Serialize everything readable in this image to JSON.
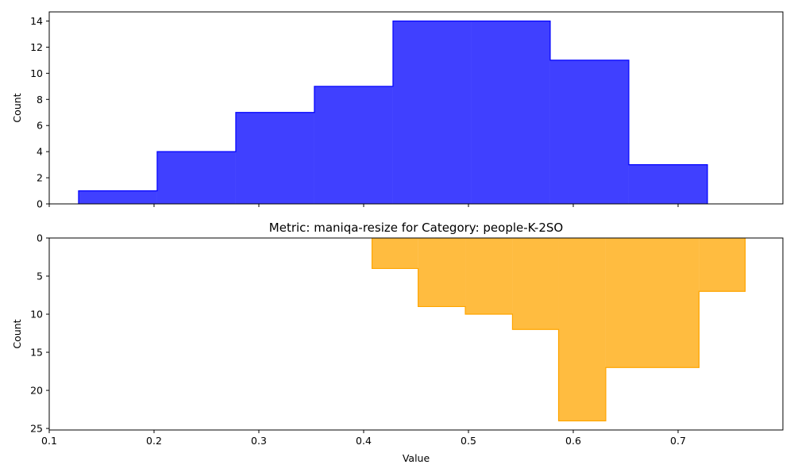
{
  "chart_data": [
    {
      "type": "histogram",
      "title": "",
      "xlabel": "",
      "ylabel": "Count",
      "xlim": [
        0.1,
        0.8
      ],
      "ylim": [
        0,
        14.7
      ],
      "y_inverted": false,
      "yticks": [
        0,
        2,
        4,
        6,
        8,
        10,
        12,
        14
      ],
      "xticks": [
        0.1,
        0.2,
        0.3,
        0.4,
        0.5,
        0.6,
        0.7
      ],
      "show_xtick_labels": false,
      "color": "#0000ff",
      "edges": [
        0.128,
        0.203,
        0.278,
        0.353,
        0.428,
        0.503,
        0.578,
        0.653,
        0.728
      ],
      "counts": [
        1,
        4,
        7,
        9,
        14,
        14,
        11,
        3
      ]
    },
    {
      "type": "histogram",
      "title": "Metric: maniqa-resize for Category: people-K-2SO",
      "xlabel": "Value",
      "ylabel": "Count",
      "xlim": [
        0.1,
        0.8
      ],
      "ylim": [
        0,
        25.2
      ],
      "y_inverted": true,
      "yticks": [
        0,
        5,
        10,
        15,
        20,
        25
      ],
      "xticks": [
        0.1,
        0.2,
        0.3,
        0.4,
        0.5,
        0.6,
        0.7
      ],
      "show_xtick_labels": true,
      "color": "#ffa500",
      "edges": [
        0.408,
        0.452,
        0.497,
        0.542,
        0.586,
        0.631,
        0.675,
        0.72,
        0.764
      ],
      "counts": [
        4,
        9,
        10,
        12,
        24,
        17,
        17,
        7
      ]
    }
  ]
}
